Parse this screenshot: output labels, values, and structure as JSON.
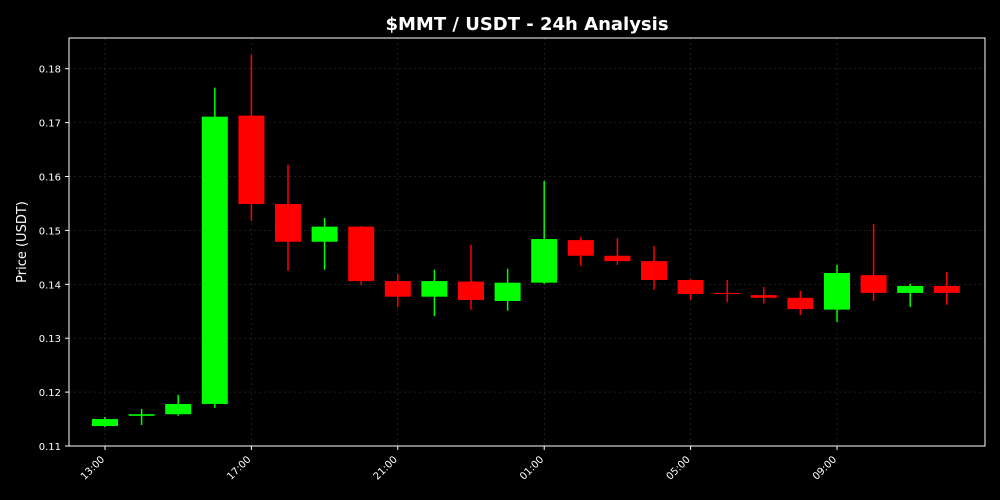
{
  "chart_data": {
    "type": "candlestick",
    "title": "$MMT / USDT - 24h Analysis",
    "y_label": "Price (USDT)",
    "categories": [
      "13:00",
      null,
      null,
      null,
      "17:00",
      null,
      null,
      null,
      "21:00",
      null,
      null,
      null,
      "01:00",
      null,
      null,
      null,
      "05:00",
      null,
      null,
      null,
      "09:00",
      null,
      null,
      null
    ],
    "open": [
      0.1137,
      0.1156,
      0.1159,
      0.1178,
      0.1713,
      0.1549,
      0.1479,
      0.1507,
      0.1406,
      0.1377,
      0.1405,
      0.1369,
      0.1403,
      0.1482,
      0.1453,
      0.1443,
      0.1408,
      0.1384,
      0.138,
      0.1375,
      0.1353,
      0.1417,
      0.1384,
      0.1397
    ],
    "high": [
      0.1154,
      0.1169,
      0.1195,
      0.1765,
      0.1826,
      0.1622,
      0.1523,
      0.1508,
      0.1419,
      0.1427,
      0.1473,
      0.1429,
      0.1592,
      0.1488,
      0.1486,
      0.1471,
      0.141,
      0.1408,
      0.1395,
      0.1388,
      0.1436,
      0.1512,
      0.1401,
      0.1423
    ],
    "low": [
      0.1135,
      0.1139,
      0.1156,
      0.1171,
      0.1518,
      0.1425,
      0.1427,
      0.1399,
      0.1358,
      0.1341,
      0.1353,
      0.1351,
      0.1401,
      0.1434,
      0.1436,
      0.139,
      0.1371,
      0.1367,
      0.1364,
      0.1343,
      0.133,
      0.1369,
      0.1358,
      0.1362
    ],
    "close": [
      0.115,
      0.1159,
      0.1178,
      0.1711,
      0.1549,
      0.1479,
      0.1507,
      0.1406,
      0.1377,
      0.1406,
      0.1371,
      0.1403,
      0.1484,
      0.1453,
      0.1443,
      0.1408,
      0.1382,
      0.1382,
      0.1375,
      0.1354,
      0.1421,
      0.1384,
      0.1397,
      0.1384
    ],
    "up_color": "#00ff00",
    "down_color": "#ff0000",
    "ylim": [
      0.11,
      0.1857
    ],
    "yticks": [
      0.11,
      0.12,
      0.13,
      0.14,
      0.15,
      0.16,
      0.17,
      0.18
    ],
    "grid": true
  }
}
